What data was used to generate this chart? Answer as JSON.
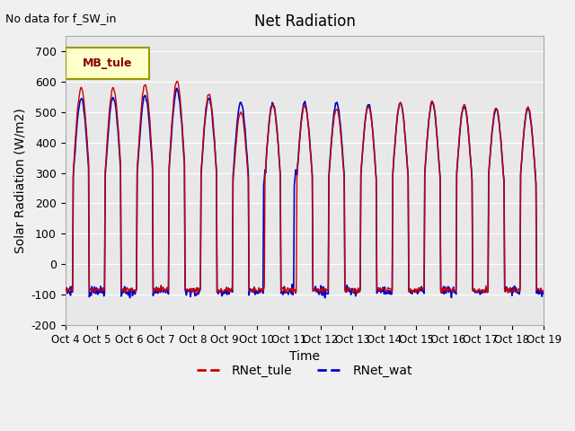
{
  "title": "Net Radiation",
  "xlabel": "Time",
  "ylabel": "Solar Radiation (W/m2)",
  "annotation": "No data for f_SW_in",
  "legend_label": "MB_tule",
  "ylim": [
    -200,
    750
  ],
  "yticks": [
    -200,
    -100,
    0,
    100,
    200,
    300,
    400,
    500,
    600,
    700
  ],
  "xtick_labels": [
    "Oct 4",
    "Oct 5",
    "Oct 6",
    "Oct 7",
    "Oct 8",
    "Oct 9",
    "Oct 10",
    "Oct 11",
    "Oct 12",
    "Oct 13",
    "Oct 14",
    "Oct 15",
    "Oct 16",
    "Oct 17",
    "Oct 18",
    "Oct 19"
  ],
  "line1_color": "#cc0000",
  "line2_color": "#0000cc",
  "line1_label": "RNet_tule",
  "line2_label": "RNet_wat",
  "bg_color": "#e8e8e8",
  "legend_box_color": "#ffffcc",
  "legend_box_edge": "#999900",
  "n_days": 15,
  "pts_per_day": 48,
  "peaks_tule": [
    580,
    580,
    590,
    600,
    560,
    500,
    525,
    520,
    510,
    520,
    530,
    535,
    525,
    515,
    515
  ],
  "peaks_wat": [
    545,
    550,
    555,
    575,
    545,
    530,
    530,
    530,
    530,
    525,
    530,
    530,
    520,
    510,
    510
  ],
  "night_tule": -85.0,
  "night_wat": -90.0
}
